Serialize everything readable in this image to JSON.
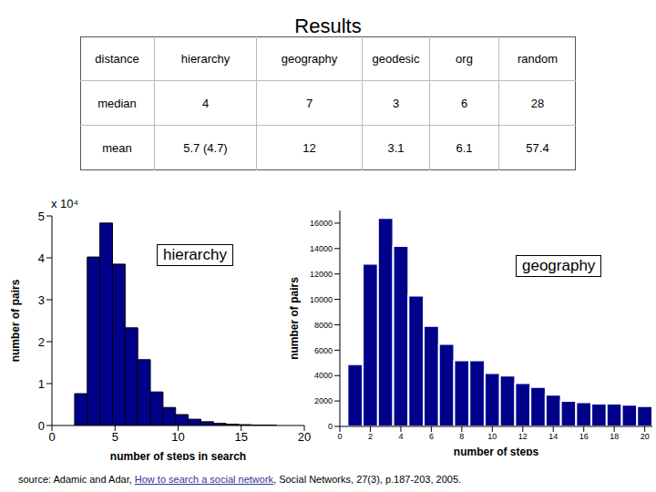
{
  "title": "Results",
  "table": {
    "header": [
      "distance",
      "hierarchy",
      "geography",
      "geodesic",
      "org",
      "random"
    ],
    "rows": [
      [
        "median",
        4,
        7,
        3,
        6,
        28
      ],
      [
        "mean",
        "5.7 (4.7)",
        12,
        3.1,
        6.1,
        57.4
      ]
    ]
  },
  "chart_data": [
    {
      "type": "histogram",
      "annotation": "hierarchy",
      "x_label": "number of steps in search",
      "y_label": "number of pairs",
      "y_multiplier": "x 10⁴",
      "bins": [
        1.8,
        2.8,
        3.8,
        4.8,
        5.8,
        6.8,
        7.8,
        8.8,
        9.8,
        10.8,
        11.8,
        12.8,
        13.8,
        14.8,
        15.8,
        16.8,
        17.8
      ],
      "counts": [
        0.76,
        4.02,
        4.83,
        3.85,
        2.33,
        1.57,
        0.8,
        0.43,
        0.26,
        0.15,
        0.09,
        0.05,
        0.03,
        0.02,
        0.01,
        0.01
      ],
      "color": "#00008b",
      "xlim": [
        0,
        20
      ],
      "xticks": [
        0,
        5,
        10,
        15,
        20
      ],
      "ylim": [
        0,
        5
      ],
      "yticks": [
        0,
        1,
        2,
        3,
        4,
        5
      ]
    },
    {
      "type": "histogram",
      "annotation": "geography",
      "x_label": "number of steps",
      "y_label": "number of pairs",
      "bins": [
        0.5,
        1.5,
        2.5,
        3.5,
        4.5,
        5.5,
        6.5,
        7.5,
        8.5,
        9.5,
        10.5,
        11.5,
        12.5,
        13.5,
        14.5,
        15.5,
        16.5,
        17.5,
        18.5,
        19.5,
        20.5
      ],
      "counts": [
        4900,
        12800,
        16400,
        14200,
        10300,
        7900,
        6500,
        5200,
        5200,
        4200,
        4000,
        3400,
        3100,
        2500,
        2000,
        1900,
        1800,
        1800,
        1700,
        1600
      ],
      "color": "#00008b",
      "xlim": [
        0,
        20.5
      ],
      "xticks": [
        0,
        2,
        4,
        6,
        8,
        10,
        12,
        14,
        16,
        18,
        20
      ],
      "ylim": [
        0,
        17000
      ],
      "yticks": [
        0,
        2000,
        4000,
        6000,
        8000,
        10000,
        12000,
        14000,
        16000
      ]
    }
  ],
  "source": {
    "before": "source: Adamic and Adar, ",
    "link": "How to search a social network",
    "after": ", Social Networks, 27(3), p.187-203, 2005."
  }
}
